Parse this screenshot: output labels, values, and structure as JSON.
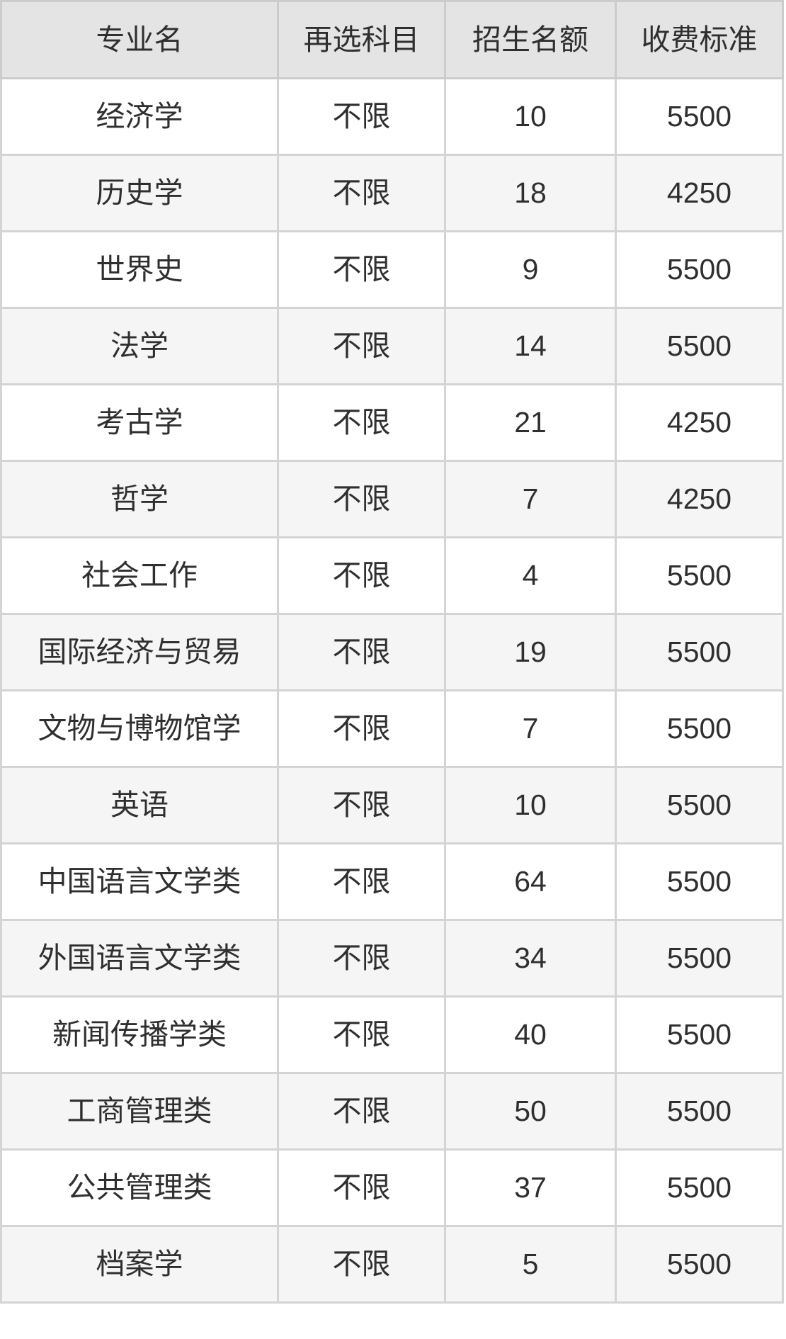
{
  "table": {
    "columns": [
      "专业名",
      "再选科目",
      "招生名额",
      "收费标准"
    ],
    "rows": [
      [
        "经济学",
        "不限",
        "10",
        "5500"
      ],
      [
        "历史学",
        "不限",
        "18",
        "4250"
      ],
      [
        "世界史",
        "不限",
        "9",
        "5500"
      ],
      [
        "法学",
        "不限",
        "14",
        "5500"
      ],
      [
        "考古学",
        "不限",
        "21",
        "4250"
      ],
      [
        "哲学",
        "不限",
        "7",
        "4250"
      ],
      [
        "社会工作",
        "不限",
        "4",
        "5500"
      ],
      [
        "国际经济与贸易",
        "不限",
        "19",
        "5500"
      ],
      [
        "文物与博物馆学",
        "不限",
        "7",
        "5500"
      ],
      [
        "英语",
        "不限",
        "10",
        "5500"
      ],
      [
        "中国语言文学类",
        "不限",
        "64",
        "5500"
      ],
      [
        "外国语言文学类",
        "不限",
        "34",
        "5500"
      ],
      [
        "新闻传播学类",
        "不限",
        "40",
        "5500"
      ],
      [
        "工商管理类",
        "不限",
        "50",
        "5500"
      ],
      [
        "公共管理类",
        "不限",
        "37",
        "5500"
      ],
      [
        "档案学",
        "不限",
        "5",
        "5500"
      ]
    ],
    "colors": {
      "header_bg": "#e4e4e4",
      "row_odd_bg": "#ffffff",
      "row_even_bg": "#f5f5f5",
      "border": "#d4d4d4",
      "text": "#2f2f2f"
    }
  },
  "chart_data": {
    "type": "table",
    "title": "",
    "columns": [
      "专业名",
      "再选科目",
      "招生名额",
      "收费标准"
    ],
    "rows": [
      [
        "经济学",
        "不限",
        10,
        5500
      ],
      [
        "历史学",
        "不限",
        18,
        4250
      ],
      [
        "世界史",
        "不限",
        9,
        5500
      ],
      [
        "法学",
        "不限",
        14,
        5500
      ],
      [
        "考古学",
        "不限",
        21,
        4250
      ],
      [
        "哲学",
        "不限",
        7,
        4250
      ],
      [
        "社会工作",
        "不限",
        4,
        5500
      ],
      [
        "国际经济与贸易",
        "不限",
        19,
        5500
      ],
      [
        "文物与博物馆学",
        "不限",
        7,
        5500
      ],
      [
        "英语",
        "不限",
        10,
        5500
      ],
      [
        "中国语言文学类",
        "不限",
        64,
        5500
      ],
      [
        "外国语言文学类",
        "不限",
        34,
        5500
      ],
      [
        "新闻传播学类",
        "不限",
        40,
        5500
      ],
      [
        "工商管理类",
        "不限",
        50,
        5500
      ],
      [
        "公共管理类",
        "不限",
        37,
        5500
      ],
      [
        "档案学",
        "不限",
        5,
        5500
      ]
    ]
  }
}
